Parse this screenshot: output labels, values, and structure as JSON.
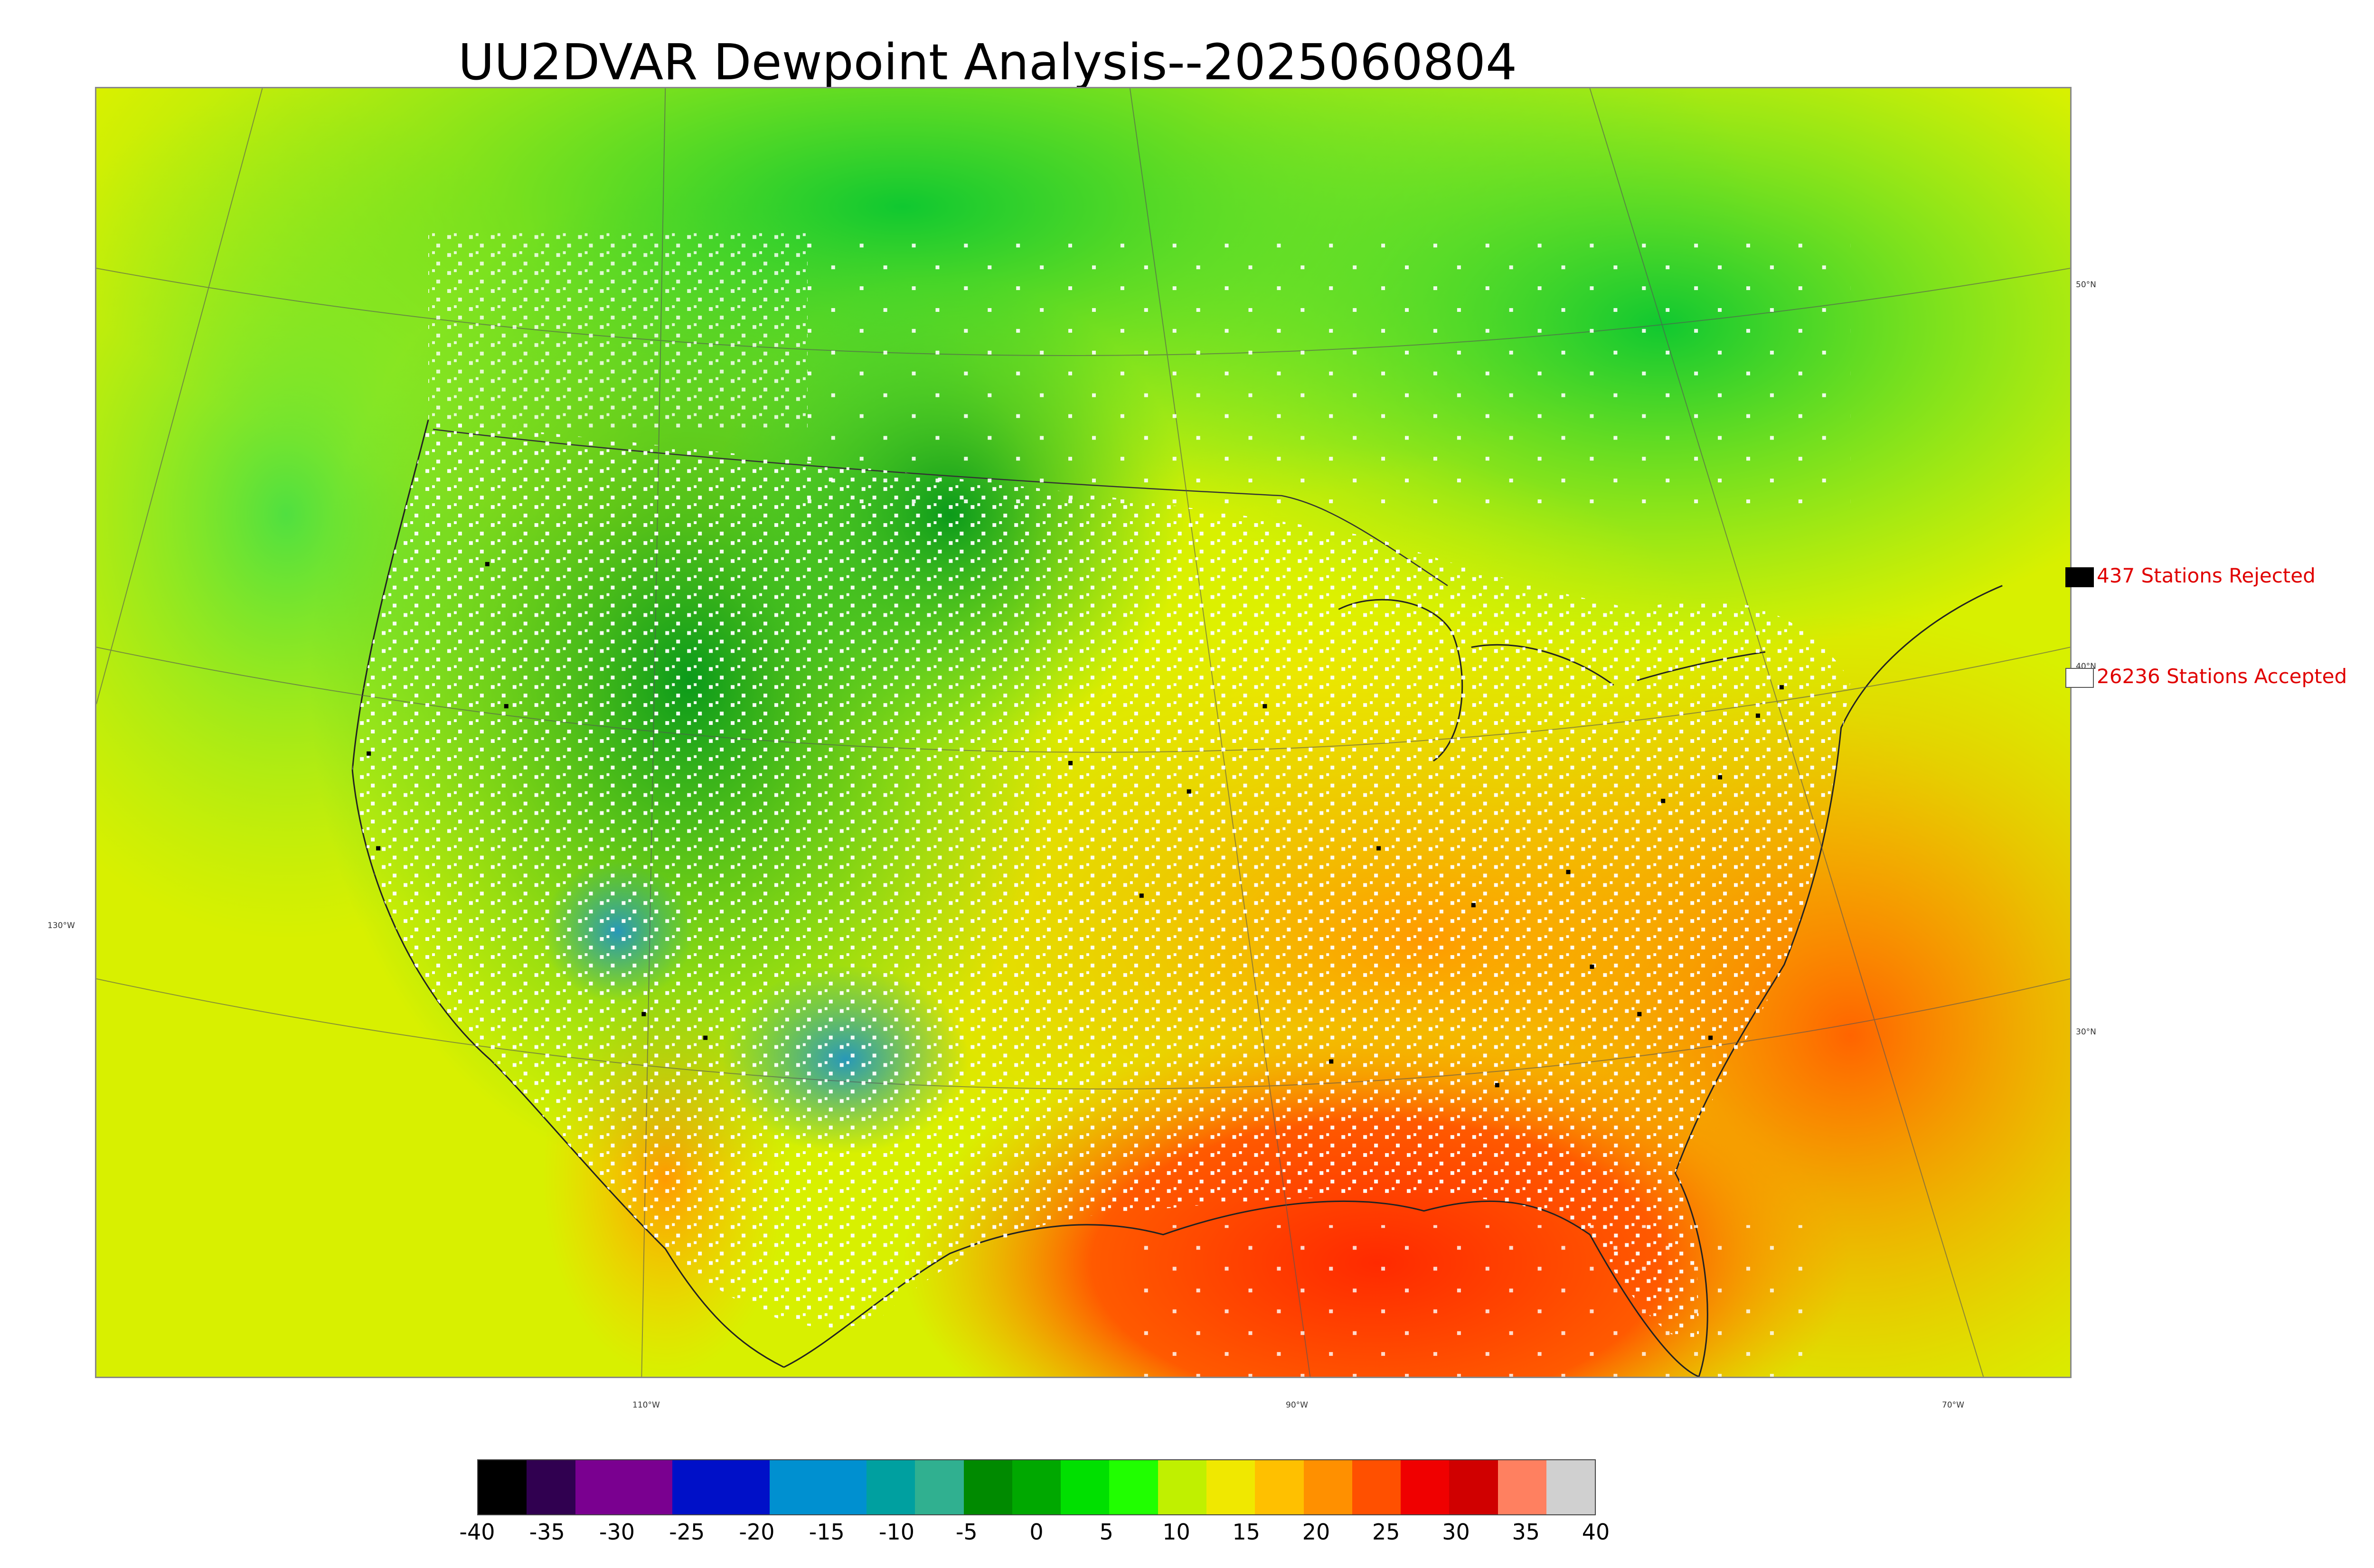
{
  "title": "UU2DVAR Dewpoint Analysis--2025060804",
  "legend": {
    "rejected_label": "437 Stations Rejected",
    "accepted_label": "26236 Stations Accepted",
    "rejected_color": "#000000",
    "accepted_color": "#ffffff",
    "text_color": "#e00000"
  },
  "graticule_labels": {
    "lat": [
      "50°N",
      "40°N",
      "30°N"
    ],
    "lon": [
      "130°W",
      "110°W",
      "90°W",
      "70°W"
    ]
  },
  "colorbar": {
    "ticks": [
      "-40",
      "-35",
      "-30",
      "-25",
      "-20",
      "-15",
      "-10",
      "-5",
      "0",
      "5",
      "10",
      "15",
      "20",
      "25",
      "30",
      "35",
      "40"
    ],
    "colors": [
      "#000000",
      "#300050",
      "#7a0090",
      "#7a0090",
      "#0010c8",
      "#0010c8",
      "#0090d0",
      "#0090d0",
      "#00a0a0",
      "#30b090",
      "#008a00",
      "#00a800",
      "#00e000",
      "#20ff00",
      "#c0f000",
      "#f0e800",
      "#ffc000",
      "#ff9000",
      "#ff5000",
      "#f00000",
      "#d00000",
      "#ff8060",
      "#d0d0d0"
    ]
  },
  "map": {
    "field": "dewpoint",
    "region": "CONUS",
    "station_markers": [
      "accepted",
      "rejected"
    ]
  }
}
